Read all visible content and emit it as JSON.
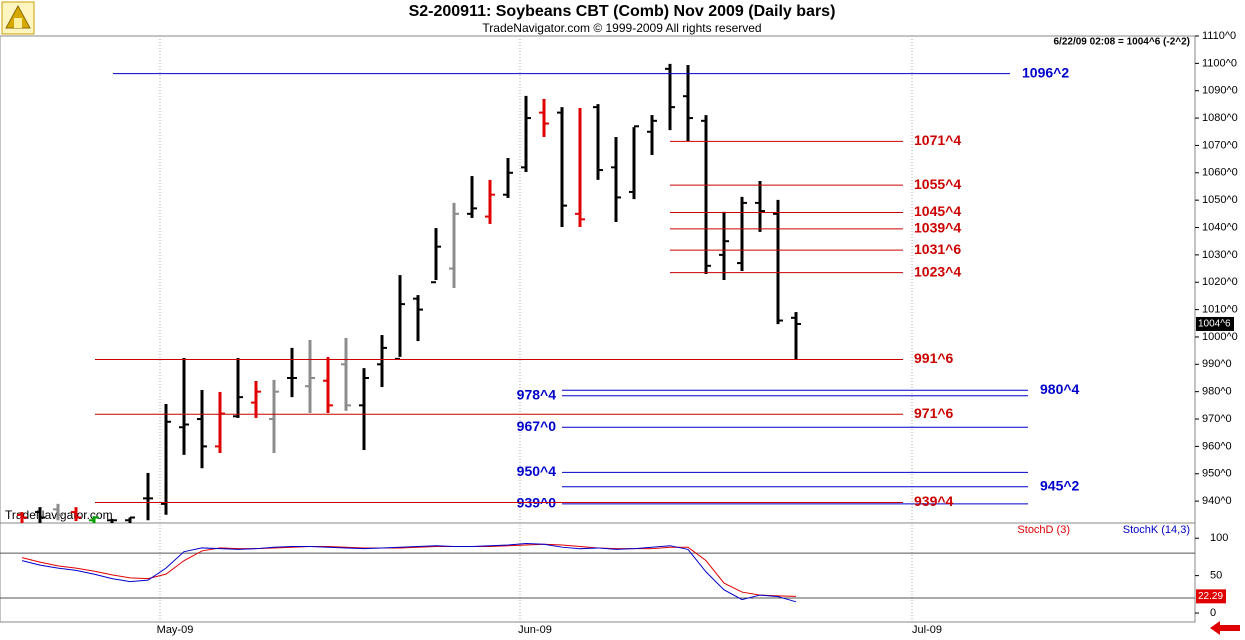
{
  "header": {
    "title": "S2-200911:  Soybeans CBT (Comb) Nov 2009  (Daily bars)",
    "subtitle": "TradeNavigator.com © 1999-2009 All rights reserved",
    "quote": "6/22/09 02:08 = 1004^6 (-2^2)",
    "watermark": "TradeNavigator.com"
  },
  "chart_data": [
    {
      "type": "ohlc",
      "open": [
        935,
        936,
        937,
        936,
        933,
        933,
        933,
        941,
        939,
        967,
        970,
        960,
        971,
        976,
        970,
        985,
        982,
        984,
        990,
        975,
        990,
        992,
        1014,
        1020,
        1025,
        1045,
        1044,
        1052,
        1062,
        1082,
        1082,
        1045,
        1084,
        1062,
        1053,
        1075,
        1098,
        1088,
        1079,
        1030,
        1027,
        1049,
        1045,
        1007
      ],
      "high": [
        936,
        937.8,
        939,
        937.8,
        934.5,
        933.5,
        934,
        950.3,
        975.5,
        992.3,
        980.6,
        979.9,
        992.3,
        983.9,
        984.3,
        996,
        998.9,
        992.7,
        999.6,
        988.6,
        1000.7,
        1022.6,
        1015.3,
        1039.8,
        1049,
        1058.8,
        1057.4,
        1065.4,
        1088.1,
        1087,
        1084,
        1083.7,
        1085.1,
        1073.1,
        1076.7,
        1081.1,
        1099.8,
        1099.4,
        1081.1,
        1045.7,
        1051.2,
        1057,
        1050.1,
        1009.1
      ],
      "low": [
        932,
        932,
        933,
        932.7,
        932,
        932,
        932,
        933,
        935,
        956.9,
        952,
        957.6,
        970.4,
        970.4,
        957.6,
        978,
        972.2,
        972.2,
        973,
        958.7,
        981.7,
        992.7,
        998.5,
        1020.8,
        1017.9,
        1043.5,
        1041.3,
        1050.8,
        1060.3,
        1073.1,
        1040.2,
        1040.2,
        1057.4,
        1042,
        1050.4,
        1066.5,
        1075.6,
        1071.6,
        1023,
        1020.8,
        1024.1,
        1038.4,
        1004.7,
        991.6
      ],
      "close": [
        934,
        934,
        935,
        934,
        934,
        933,
        934,
        941,
        969,
        968,
        960,
        972,
        978,
        980,
        980,
        985,
        985,
        975,
        975,
        985,
        996,
        1012,
        1010,
        1033,
        1045,
        1047,
        1052,
        1060,
        1080,
        1078,
        1048,
        1043,
        1061,
        1051,
        1077,
        1079,
        1084,
        1080,
        1026,
        1035,
        1049,
        1046,
        1006,
        1004.75
      ],
      "bar_colors": [
        "#e00000",
        "#000000",
        "#8c8c8c",
        "#e00000",
        "#00a000",
        "#000000",
        "#000000",
        "#000000",
        "#000000",
        "#000000",
        "#000000",
        "#e00000",
        "#000000",
        "#e00000",
        "#8c8c8c",
        "#000000",
        "#8c8c8c",
        "#e00000",
        "#8c8c8c",
        "#000000",
        "#000000",
        "#000000",
        "#000000",
        "#000000",
        "#8c8c8c",
        "#000000",
        "#e00000",
        "#000000",
        "#000000",
        "#e00000",
        "#000000",
        "#e00000",
        "#000000",
        "#000000",
        "#000000",
        "#000000",
        "#000000",
        "#000000",
        "#000000",
        "#000000",
        "#000000",
        "#000000",
        "#000000",
        "#000000"
      ],
      "ylim": [
        932,
        1110
      ],
      "yticks": [
        {
          "value": 1110,
          "label": "1110^0"
        },
        {
          "value": 1100,
          "label": "1100^0"
        },
        {
          "value": 1090,
          "label": "1090^0"
        },
        {
          "value": 1080,
          "label": "1080^0"
        },
        {
          "value": 1070,
          "label": "1070^0"
        },
        {
          "value": 1060,
          "label": "1060^0"
        },
        {
          "value": 1050,
          "label": "1050^0"
        },
        {
          "value": 1040,
          "label": "1040^0"
        },
        {
          "value": 1030,
          "label": "1030^0"
        },
        {
          "value": 1020,
          "label": "1020^0"
        },
        {
          "value": 1010,
          "label": "1010^0"
        },
        {
          "value": 1000,
          "label": "1000^0"
        },
        {
          "value": 990,
          "label": "990^0"
        },
        {
          "value": 980,
          "label": "980^0"
        },
        {
          "value": 970,
          "label": "970^0"
        },
        {
          "value": 960,
          "label": "960^0"
        },
        {
          "value": 950,
          "label": "950^0"
        },
        {
          "value": 940,
          "label": "940^0"
        }
      ],
      "levels": [
        {
          "value": 1096.25,
          "label": "1096^2",
          "color": "#0000cc"
        },
        {
          "value": 1071.5,
          "label": "1071^4",
          "color": "#cc0000"
        },
        {
          "value": 1055.5,
          "label": "1055^4",
          "color": "#cc0000"
        },
        {
          "value": 1045.5,
          "label": "1045^4",
          "color": "#cc0000"
        },
        {
          "value": 1039.5,
          "label": "1039^4",
          "color": "#cc0000"
        },
        {
          "value": 1031.75,
          "label": "1031^6",
          "color": "#cc0000"
        },
        {
          "value": 1023.5,
          "label": "1023^4",
          "color": "#cc0000"
        },
        {
          "value": 991.75,
          "label": "991^6",
          "color": "#cc0000"
        },
        {
          "value": 980.5,
          "label": "980^4",
          "color": "#0000cc"
        },
        {
          "value": 978.5,
          "label": "978^4",
          "color": "#0000cc"
        },
        {
          "value": 971.75,
          "label": "971^6",
          "color": "#cc0000"
        },
        {
          "value": 967,
          "label": "967^0",
          "color": "#0000cc"
        },
        {
          "value": 950.5,
          "label": "950^4",
          "color": "#0000cc"
        },
        {
          "value": 945.25,
          "label": "945^2",
          "color": "#0000cc"
        },
        {
          "value": 939,
          "label": "939^0",
          "color": "#0000cc"
        },
        {
          "value": 939.5,
          "label": "939^4",
          "color": "#cc0000"
        }
      ],
      "last": {
        "value": 1004.75,
        "label": "1004^6"
      },
      "x_labels": [
        "May-09",
        "Jun-09",
        "Jul-09"
      ]
    },
    {
      "type": "line",
      "ylim": [
        -12,
        119
      ],
      "yticks": [
        0,
        50,
        100
      ],
      "hlines": [
        20,
        80
      ],
      "series": [
        {
          "name": "StochD (3)",
          "color": "#e00000",
          "values": [
            74,
            68,
            63,
            60,
            56,
            51,
            47,
            46,
            52,
            70,
            83,
            87,
            86,
            86,
            87,
            88,
            89,
            89,
            88,
            87,
            87,
            87,
            88,
            89,
            89,
            89,
            89,
            90,
            91,
            92,
            91,
            89,
            87,
            86,
            86,
            86,
            88,
            88,
            70,
            40,
            28,
            24,
            23,
            22.29
          ]
        },
        {
          "name": "StochK (14,3)",
          "color": "#0000cc",
          "values": [
            70,
            64,
            60,
            57,
            52,
            46,
            42,
            44,
            60,
            82,
            87,
            86,
            85,
            86,
            88,
            89,
            89,
            88,
            87,
            86,
            87,
            88,
            89,
            90,
            89,
            89,
            90,
            91,
            93,
            92,
            88,
            86,
            87,
            85,
            86,
            88,
            90,
            85,
            55,
            31,
            18,
            24,
            22,
            15
          ]
        }
      ]
    }
  ]
}
